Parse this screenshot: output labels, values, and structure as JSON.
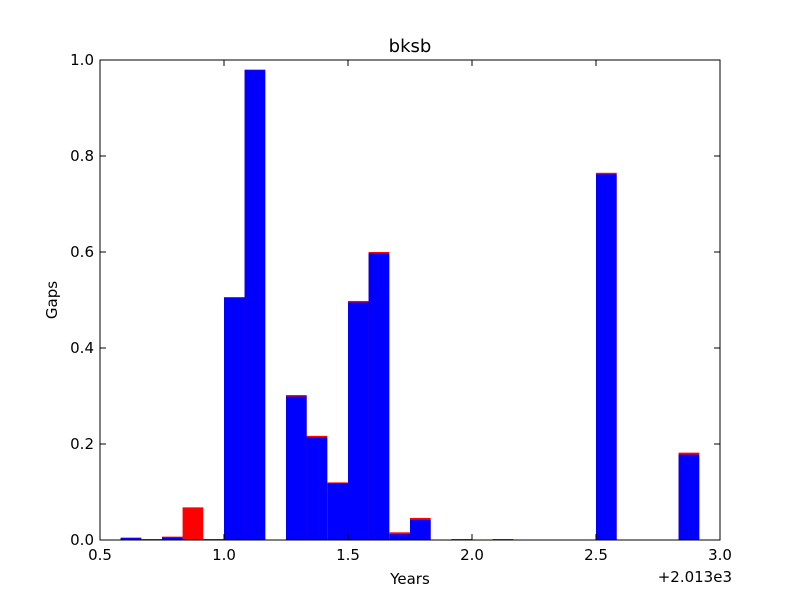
{
  "chart_data": {
    "type": "bar",
    "title": "bksb",
    "xlabel": "Years",
    "ylabel": "Gaps",
    "x_offset_label": "+2.013e3",
    "xlim": [
      0.5,
      3.0
    ],
    "ylim": [
      0.0,
      1.0
    ],
    "x_ticks": [
      "0.5",
      "1.0",
      "1.5",
      "2.0",
      "2.5",
      "3.0"
    ],
    "y_ticks": [
      "0.0",
      "0.2",
      "0.4",
      "0.6",
      "0.8",
      "1.0"
    ],
    "grid": false,
    "bin_width": 0.0833,
    "series": [
      {
        "color": "#ff0000",
        "bins": [
          {
            "x": 0.583,
            "value": 0.005
          },
          {
            "x": 0.667,
            "value": 0.002
          },
          {
            "x": 0.75,
            "value": 0.007
          },
          {
            "x": 0.833,
            "value": 0.068
          },
          {
            "x": 0.917,
            "value": 0.002
          },
          {
            "x": 1.0,
            "value": 0.506
          },
          {
            "x": 1.083,
            "value": 0.98
          },
          {
            "x": 1.25,
            "value": 0.302
          },
          {
            "x": 1.333,
            "value": 0.217
          },
          {
            "x": 1.417,
            "value": 0.12
          },
          {
            "x": 1.5,
            "value": 0.498
          },
          {
            "x": 1.583,
            "value": 0.6
          },
          {
            "x": 1.667,
            "value": 0.016
          },
          {
            "x": 1.75,
            "value": 0.046
          },
          {
            "x": 1.917,
            "value": 0.002
          },
          {
            "x": 2.083,
            "value": 0.002
          },
          {
            "x": 2.5,
            "value": 0.765
          },
          {
            "x": 2.833,
            "value": 0.182
          }
        ]
      },
      {
        "color": "#0000ff",
        "bins": [
          {
            "x": 0.583,
            "value": 0.004
          },
          {
            "x": 0.75,
            "value": 0.005
          },
          {
            "x": 1.0,
            "value": 0.505
          },
          {
            "x": 1.083,
            "value": 0.979
          },
          {
            "x": 1.25,
            "value": 0.299
          },
          {
            "x": 1.333,
            "value": 0.214
          },
          {
            "x": 1.417,
            "value": 0.118
          },
          {
            "x": 1.5,
            "value": 0.495
          },
          {
            "x": 1.583,
            "value": 0.597
          },
          {
            "x": 1.667,
            "value": 0.012
          },
          {
            "x": 1.75,
            "value": 0.042
          },
          {
            "x": 2.5,
            "value": 0.762
          },
          {
            "x": 2.833,
            "value": 0.178
          }
        ]
      }
    ]
  }
}
